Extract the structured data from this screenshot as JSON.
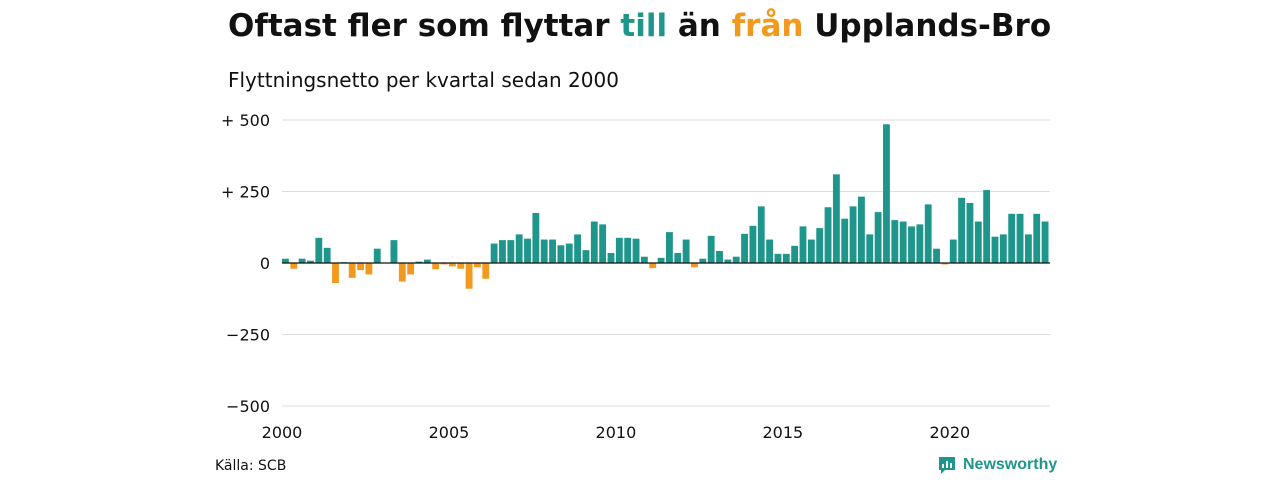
{
  "title": {
    "prefix": "Oftast fler som flyttar ",
    "highlight_to": "till",
    "middle": " än ",
    "highlight_from": "från",
    "suffix": " Upplands-Bro"
  },
  "subtitle": "Flyttningsnetto per kvartal sedan 2000",
  "source": "Källa: SCB",
  "brand": "Newsworthy",
  "colors": {
    "positive": "#1e968b",
    "negative": "#f29a1f",
    "grid": "#dddddd",
    "zero": "#111111"
  },
  "chart_data": {
    "type": "bar",
    "title": "Oftast fler som flyttar till än från Upplands-Bro",
    "subtitle": "Flyttningsnetto per kvartal sedan 2000",
    "ylim": [
      -500,
      500
    ],
    "yticks": [
      500,
      250,
      0,
      -250,
      -500
    ],
    "ytick_labels": [
      "+ 500",
      "+ 250",
      "0",
      "−250",
      "−500"
    ],
    "xticks": [
      "2000",
      "2005",
      "2010",
      "2015",
      "2020"
    ],
    "x_start_year": 2000,
    "quarters_per_year": 4,
    "grid": true,
    "series": [
      {
        "values": [
          15,
          -20,
          15,
          8,
          88,
          53,
          -70,
          3,
          -52,
          -25,
          -40,
          50,
          0,
          80,
          -65,
          -40,
          5,
          12,
          -22,
          -5,
          -12,
          -20,
          -90,
          -15,
          -55,
          68,
          80,
          80,
          100,
          85,
          175,
          82,
          82,
          62,
          68,
          100,
          45,
          145,
          135,
          35,
          88,
          88,
          85,
          22,
          -18,
          18,
          108,
          35,
          82,
          -15,
          15,
          95,
          42,
          12,
          22,
          102,
          130,
          198,
          82,
          32,
          32,
          60,
          128,
          82,
          122,
          195,
          310,
          155,
          198,
          232,
          100,
          178,
          485,
          150,
          145,
          128,
          135,
          205,
          50,
          -5,
          82,
          228,
          210,
          145,
          255,
          92,
          100,
          172,
          172,
          100,
          172,
          145
        ]
      }
    ]
  }
}
